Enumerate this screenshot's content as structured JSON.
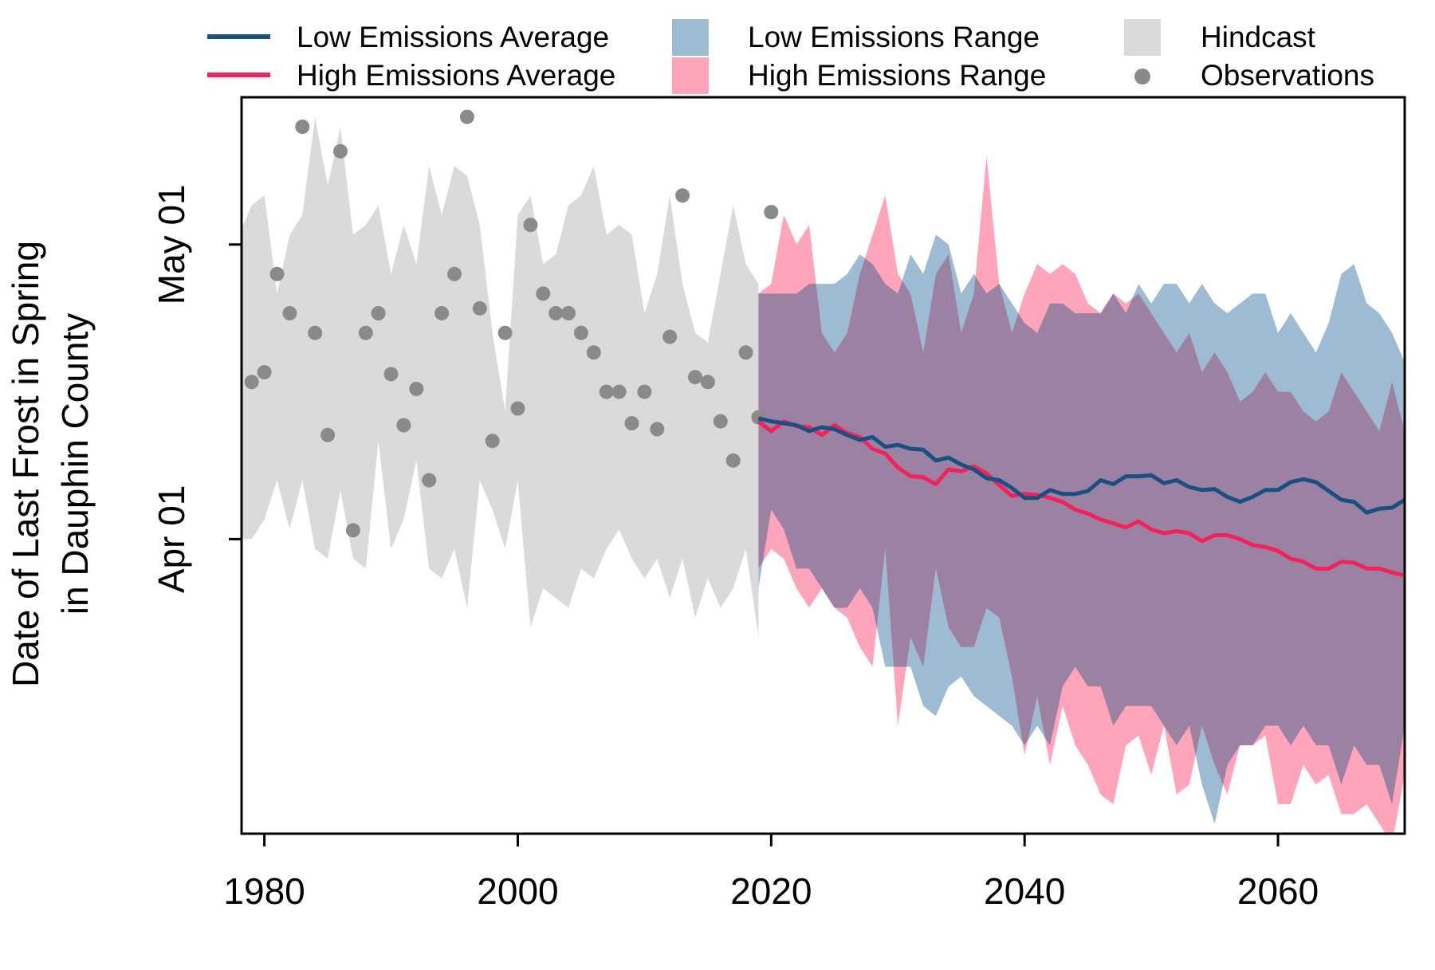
{
  "chart_data": {
    "type": "line",
    "title": "",
    "ylabel_lines": [
      "Date of Last Frost in Spring",
      "in Dauphin County"
    ],
    "xlabel": "",
    "x_ticks": [
      1980,
      2000,
      2020,
      2040,
      2060
    ],
    "y_ticks": [
      {
        "value": 91,
        "label": "Apr 01"
      },
      {
        "value": 121,
        "label": "May 01"
      }
    ],
    "xlim": [
      1978.2,
      2070
    ],
    "ylim": [
      61,
      136
    ],
    "legend_position": "top, outside plot",
    "colors": {
      "low_avg": "#1a4f82",
      "high_avg": "#f0245a",
      "low_range": "#9dbbd2",
      "high_range": "#fea4bb",
      "overlap": "#9b82a2",
      "hindcast": "#dadada",
      "observations": "#8a8a8a"
    },
    "legend": [
      {
        "label": "Low Emissions Average",
        "kind": "line",
        "color": "#1a4f82"
      },
      {
        "label": "High Emissions Average",
        "kind": "line",
        "color": "#f0245a"
      },
      {
        "label": "Low Emissions Range",
        "kind": "fill",
        "color": "#9dbbd2"
      },
      {
        "label": "High Emissions Range",
        "kind": "fill",
        "color": "#fea4bb"
      },
      {
        "label": "Hindcast",
        "kind": "fill",
        "color": "#dadada"
      },
      {
        "label": "Observations",
        "kind": "point",
        "color": "#8a8a8a"
      }
    ],
    "hindcast": {
      "x": [
        1978,
        1979,
        1980,
        1981,
        1982,
        1983,
        1984,
        1985,
        1986,
        1987,
        1988,
        1989,
        1990,
        1991,
        1992,
        1993,
        1994,
        1995,
        1996,
        1997,
        1998,
        1999,
        2000,
        2001,
        2002,
        2003,
        2004,
        2005,
        2006,
        2007,
        2008,
        2009,
        2010,
        2011,
        2012,
        2013,
        2014,
        2015,
        2016,
        2017,
        2018,
        2019
      ],
      "upper": [
        122,
        125,
        126,
        116,
        122,
        124,
        134,
        127,
        133,
        122,
        123,
        125,
        118,
        123,
        119,
        129,
        124,
        129,
        128,
        123,
        112,
        104,
        124,
        126,
        119,
        120,
        125,
        126,
        129,
        122,
        123,
        122,
        114,
        118,
        126,
        117,
        112,
        111,
        118,
        125,
        119,
        117
      ],
      "lower": [
        91,
        91,
        93,
        97,
        92,
        97,
        90,
        89,
        96,
        89,
        88,
        101,
        90,
        93,
        99,
        88,
        87,
        90,
        84,
        97,
        94,
        90,
        97,
        82,
        86,
        85,
        84,
        88,
        87,
        90,
        92,
        89,
        87,
        89,
        85,
        89,
        83,
        87,
        84,
        86,
        90,
        81
      ]
    },
    "low_range": {
      "x": [
        2019,
        2020,
        2021,
        2022,
        2023,
        2024,
        2025,
        2026,
        2027,
        2028,
        2029,
        2030,
        2031,
        2032,
        2033,
        2034,
        2035,
        2036,
        2037,
        2038,
        2039,
        2040,
        2041,
        2042,
        2043,
        2044,
        2045,
        2046,
        2047,
        2048,
        2049,
        2050,
        2051,
        2052,
        2053,
        2054,
        2055,
        2056,
        2057,
        2058,
        2059,
        2060,
        2061,
        2062,
        2063,
        2064,
        2065,
        2066,
        2067,
        2068,
        2069,
        2070
      ],
      "upper": [
        116,
        116,
        116,
        116,
        117,
        117,
        117,
        118,
        120,
        119,
        117,
        116,
        120,
        118,
        122,
        121,
        116,
        118,
        116,
        117,
        115,
        113,
        112,
        115,
        115,
        114,
        114,
        114,
        116,
        114,
        117,
        115,
        117,
        117,
        115,
        117,
        115,
        114,
        115,
        116,
        116,
        112,
        114,
        112,
        110,
        113,
        118,
        119,
        115,
        114,
        112,
        109
      ],
      "lower": [
        86,
        94,
        92,
        88,
        88,
        86,
        84,
        84,
        86,
        84,
        78,
        78,
        78,
        74,
        73,
        76,
        77,
        75,
        74,
        73,
        72,
        70,
        72,
        70,
        76,
        78,
        76,
        76,
        72,
        74,
        74,
        74,
        72,
        70,
        72,
        66,
        62,
        68,
        70,
        70,
        72,
        72,
        70,
        72,
        70,
        70,
        66,
        70,
        68,
        68,
        64,
        72
      ]
    },
    "high_range": {
      "x": [
        2019,
        2020,
        2021,
        2022,
        2023,
        2024,
        2025,
        2026,
        2027,
        2028,
        2029,
        2030,
        2031,
        2032,
        2033,
        2034,
        2035,
        2036,
        2037,
        2038,
        2039,
        2040,
        2041,
        2042,
        2043,
        2044,
        2045,
        2046,
        2047,
        2048,
        2049,
        2050,
        2051,
        2052,
        2053,
        2054,
        2055,
        2056,
        2057,
        2058,
        2059,
        2060,
        2061,
        2062,
        2063,
        2064,
        2065,
        2066,
        2067,
        2068,
        2069,
        2070
      ],
      "upper": [
        116,
        117,
        124,
        121,
        123,
        112,
        110,
        112,
        118,
        122,
        126,
        118,
        116,
        110,
        118,
        120,
        112,
        116,
        130,
        117,
        112,
        116,
        119,
        118,
        119,
        118,
        115,
        114,
        116,
        115,
        116,
        114,
        112,
        110,
        112,
        108,
        110,
        108,
        105,
        106,
        108,
        106,
        106,
        104,
        103,
        104,
        108,
        106,
        104,
        102,
        107,
        102
      ],
      "lower": [
        88,
        90,
        89,
        86,
        84,
        86,
        84,
        83,
        80,
        78,
        90,
        72,
        81,
        78,
        88,
        82,
        80,
        80,
        84,
        83,
        77,
        69,
        75,
        68,
        74,
        70,
        68,
        65,
        64,
        70,
        71,
        67,
        72,
        65,
        66,
        72,
        68,
        65,
        70,
        70,
        71,
        64,
        64,
        68,
        66,
        67,
        63,
        63,
        64,
        62,
        60,
        67
      ]
    },
    "low_average": {
      "x": [
        2019,
        2020,
        2021,
        2022,
        2023,
        2024,
        2025,
        2026,
        2027,
        2028,
        2029,
        2030,
        2031,
        2032,
        2033,
        2034,
        2035,
        2036,
        2037,
        2038,
        2039,
        2040,
        2041,
        2042,
        2043,
        2044,
        2045,
        2046,
        2047,
        2048,
        2049,
        2050,
        2051,
        2052,
        2053,
        2054,
        2055,
        2056,
        2057,
        2058,
        2059,
        2060,
        2061,
        2062,
        2063,
        2064,
        2065,
        2066,
        2067,
        2068,
        2069,
        2070
      ],
      "values": [
        103.3,
        103.0,
        102.8,
        102.6,
        102.0,
        102.4,
        102.2,
        101.6,
        101.1,
        101.4,
        100.4,
        100.6,
        100.2,
        100.1,
        99.0,
        99.3,
        98.6,
        98.1,
        97.2,
        97.0,
        96.2,
        95.2,
        95.2,
        96.0,
        95.6,
        95.6,
        95.9,
        97.0,
        96.6,
        97.4,
        97.4,
        97.5,
        96.7,
        97.0,
        96.3,
        96.0,
        96.1,
        95.3,
        94.8,
        95.3,
        96.0,
        96.0,
        96.8,
        97.1,
        96.8,
        95.9,
        95.0,
        94.8,
        93.7,
        94.1,
        94.2,
        95.0
      ]
    },
    "high_average": {
      "x": [
        2019,
        2020,
        2021,
        2022,
        2023,
        2024,
        2025,
        2026,
        2027,
        2028,
        2029,
        2030,
        2031,
        2032,
        2033,
        2034,
        2035,
        2036,
        2037,
        2038,
        2039,
        2040,
        2041,
        2042,
        2043,
        2044,
        2045,
        2046,
        2047,
        2048,
        2049,
        2050,
        2051,
        2052,
        2053,
        2054,
        2055,
        2056,
        2057,
        2058,
        2059,
        2060,
        2061,
        2062,
        2063,
        2064,
        2065,
        2066,
        2067,
        2068,
        2069,
        2070
      ],
      "values": [
        103.0,
        102.0,
        103.0,
        102.5,
        102.4,
        101.6,
        102.6,
        101.8,
        101.4,
        100.2,
        99.7,
        98.3,
        97.4,
        97.3,
        96.6,
        98.1,
        97.9,
        98.4,
        97.7,
        96.5,
        95.4,
        95.6,
        95.5,
        95.2,
        94.8,
        94.0,
        93.6,
        93.0,
        92.6,
        92.2,
        92.8,
        92.0,
        91.6,
        91.8,
        91.6,
        90.8,
        91.4,
        91.4,
        91.0,
        90.4,
        90.2,
        89.8,
        89.0,
        88.7,
        88.0,
        88.0,
        88.7,
        88.6,
        88.0,
        88.0,
        87.6,
        87.3
      ]
    },
    "observations": {
      "x": [
        1979,
        1980,
        1981,
        1982,
        1983,
        1984,
        1985,
        1986,
        1987,
        1988,
        1989,
        1990,
        1991,
        1992,
        1993,
        1994,
        1995,
        1996,
        1997,
        1998,
        1999,
        2000,
        2001,
        2002,
        2003,
        2004,
        2005,
        2006,
        2007,
        2008,
        2009,
        2010,
        2011,
        2012,
        2013,
        2014,
        2015,
        2016,
        2017,
        2018,
        2019,
        2020
      ],
      "y": [
        107,
        108,
        118,
        114,
        133,
        112,
        101.6,
        130.5,
        91.9,
        112,
        114,
        107.8,
        102.6,
        106.3,
        97,
        114,
        118,
        134,
        114.5,
        101,
        112,
        104.3,
        123,
        116,
        114,
        114,
        112,
        110,
        106,
        106,
        102.8,
        106,
        102.2,
        111.6,
        126,
        107.5,
        107,
        103,
        99,
        110,
        103.4,
        124.3
      ]
    }
  }
}
